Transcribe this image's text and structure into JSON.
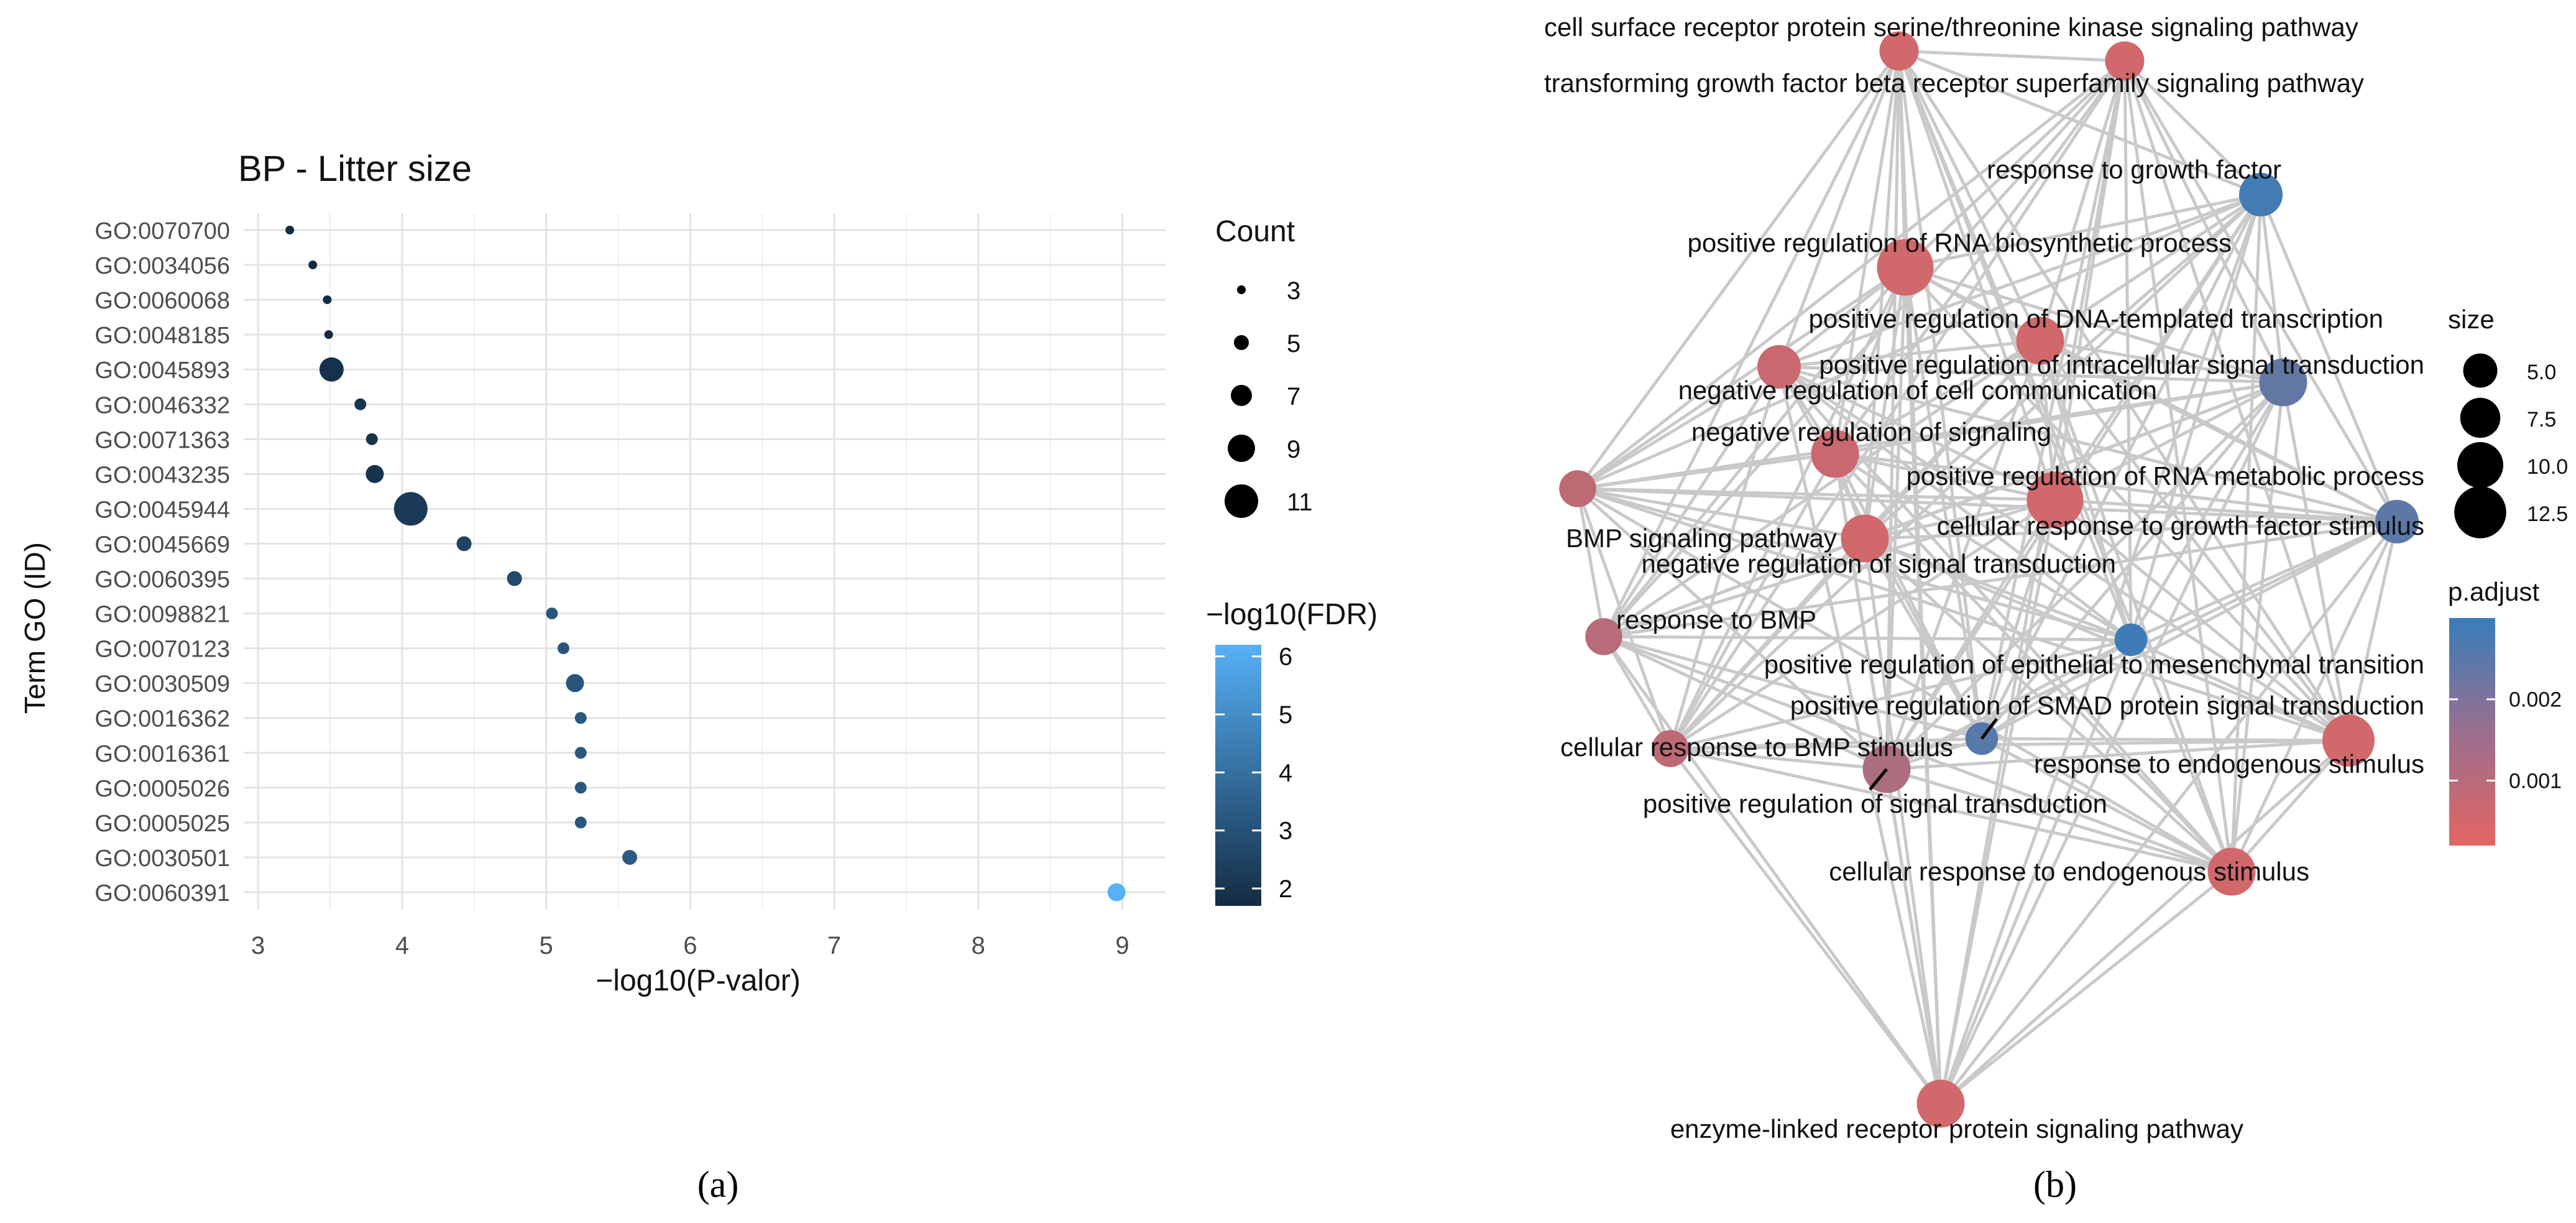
{
  "chart_data": [
    {
      "type": "scatter",
      "panel_label": "(a)",
      "title": "BP - Litter size",
      "xlabel": "−log10(P-valor)",
      "ylabel": "Term GO (ID)",
      "xlim": [
        2.9,
        9.3
      ],
      "xticks": [
        "3",
        "4",
        "5",
        "6",
        "7",
        "8",
        "9"
      ],
      "terms": [
        "GO:0070700",
        "GO:0034056",
        "GO:0060068",
        "GO:0048185",
        "GO:0045893",
        "GO:0046332",
        "GO:0071363",
        "GO:0043235",
        "GO:0045944",
        "GO:0045669",
        "GO:0060395",
        "GO:0098821",
        "GO:0070123",
        "GO:0030509",
        "GO:0016362",
        "GO:0016361",
        "GO:0005026",
        "GO:0005025",
        "GO:0030501",
        "GO:0060391"
      ],
      "x": [
        3.22,
        3.38,
        3.48,
        3.49,
        3.51,
        3.71,
        3.79,
        3.81,
        4.06,
        4.43,
        4.78,
        5.04,
        5.12,
        5.2,
        5.24,
        5.24,
        5.24,
        5.24,
        5.58,
        8.96
      ],
      "count": [
        3,
        3,
        3,
        3,
        8,
        4,
        4,
        6,
        11,
        5,
        5,
        4,
        4,
        6,
        4,
        4,
        4,
        4,
        5,
        6
      ],
      "neg_log10_fdr": [
        1.7,
        1.7,
        1.7,
        1.7,
        1.9,
        2.0,
        2.0,
        2.0,
        2.2,
        2.5,
        2.7,
        3.1,
        3.1,
        3.1,
        3.2,
        3.2,
        3.2,
        3.2,
        3.3,
        6.2
      ],
      "legend_count": {
        "title": "Count",
        "values": [
          3,
          5,
          7,
          9,
          11
        ],
        "labels": [
          "3",
          "5",
          "7",
          "9",
          "11"
        ]
      },
      "legend_color": {
        "title": "−log10(FDR)",
        "range": [
          1.7,
          6.2
        ],
        "ticks": [
          2,
          3,
          4,
          5,
          6
        ],
        "labels": [
          "2",
          "3",
          "4",
          "5",
          "6"
        ],
        "low_color": "#132B43",
        "high_color": "#56B1F7"
      }
    },
    {
      "type": "network",
      "panel_label": "(b)",
      "nodes": [
        {
          "label": "cell surface receptor protein serine/threonine kinase signaling pathway",
          "size": 5,
          "p_adjust": 0.0005
        },
        {
          "label": "transforming growth factor beta receptor superfamily signaling pathway",
          "size": 5,
          "p_adjust": 0.0005
        },
        {
          "label": "response to growth factor",
          "size": 6,
          "p_adjust": 0.0028
        },
        {
          "label": "positive regulation of RNA biosynthetic process",
          "size": 9,
          "p_adjust": 0.0005
        },
        {
          "label": "positive regulation of DNA-templated transcription",
          "size": 7,
          "p_adjust": 0.0005
        },
        {
          "label": "positive regulation of intracellular signal transduction",
          "size": 7,
          "p_adjust": 0.0023
        },
        {
          "label": "negative regulation of cell communication",
          "size": 6,
          "p_adjust": 0.0006
        },
        {
          "label": "negative regulation of signaling",
          "size": 7,
          "p_adjust": 0.0006
        },
        {
          "label": "positive regulation of RNA metabolic process",
          "size": 9,
          "p_adjust": 0.0005
        },
        {
          "label": "BMP signaling pathway",
          "size": 4.5,
          "p_adjust": 0.0008
        },
        {
          "label": "cellular response to growth factor stimulus",
          "size": 6,
          "p_adjust": 0.0024
        },
        {
          "label": "negative regulation of signal transduction",
          "size": 7,
          "p_adjust": 0.0005
        },
        {
          "label": "response to BMP",
          "size": 4.5,
          "p_adjust": 0.0009
        },
        {
          "label": "positive regulation of epithelial to mesenchymal transition",
          "size": 3.5,
          "p_adjust": 0.0029
        },
        {
          "label": "positive regulation of SMAD protein signal transduction",
          "size": 3.5,
          "p_adjust": 0.0025
        },
        {
          "label": "cellular response to BMP stimulus",
          "size": 4.5,
          "p_adjust": 0.0008
        },
        {
          "label": "positive regulation of signal transduction",
          "size": 7,
          "p_adjust": 0.0011
        },
        {
          "label": "response to endogenous stimulus",
          "size": 8,
          "p_adjust": 0.0005
        },
        {
          "label": "cellular response to endogenous stimulus",
          "size": 7,
          "p_adjust": 0.0005
        },
        {
          "label": "enzyme-linked receptor protein signaling pathway",
          "size": 7,
          "p_adjust": 0.0005
        }
      ],
      "legend_size": {
        "title": "size",
        "values": [
          5.0,
          7.5,
          10.0,
          12.5
        ],
        "labels": [
          "5.0",
          "7.5",
          "10.0",
          "12.5"
        ]
      },
      "legend_color": {
        "title": "p.adjust",
        "range": [
          0.0002,
          0.003
        ],
        "ticks": [
          0.002,
          0.001
        ],
        "labels": [
          "0.002",
          "0.001"
        ],
        "low_color": "#E36562",
        "high_color": "#377DBA"
      }
    }
  ]
}
